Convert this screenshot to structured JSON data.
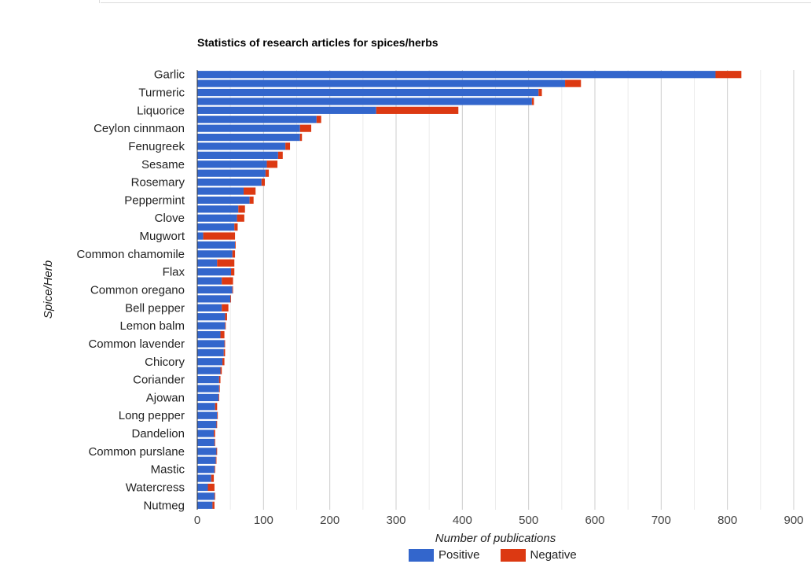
{
  "chart_data": {
    "type": "bar",
    "orientation": "horizontal",
    "stacked": true,
    "title": "Statistics of research articles for spices/herbs",
    "xlabel": "Number of publications",
    "ylabel": "Spice/Herb",
    "xlim": [
      0,
      900
    ],
    "xticks": [
      0,
      100,
      200,
      300,
      400,
      500,
      600,
      700,
      800,
      900
    ],
    "grid": true,
    "legend_position": "bottom",
    "categories": [
      "Garlic",
      "",
      "Turmeric",
      "",
      "Liquorice",
      "",
      "Ceylon cinnmaon",
      "",
      "Fenugreek",
      "",
      "Sesame",
      "",
      "Rosemary",
      "",
      "Peppermint",
      "",
      "Clove",
      "",
      "Mugwort",
      "",
      "Common chamomile",
      "",
      "Flax",
      "",
      "Common oregano",
      "",
      "Bell pepper",
      "",
      "Lemon balm",
      "",
      "Common lavender",
      "",
      "Chicory",
      "",
      "Coriander",
      "",
      "Ajowan",
      "",
      "Long pepper",
      "",
      "Dandelion",
      "",
      "Common purslane",
      "",
      "Mastic",
      "",
      "Watercress",
      "",
      "Nutmeg"
    ],
    "series": [
      {
        "name": "Positive",
        "color": "#3366cc",
        "values": [
          782,
          555,
          515,
          505,
          270,
          180,
          155,
          155,
          133,
          122,
          105,
          103,
          97,
          70,
          79,
          62,
          60,
          56,
          9,
          57,
          53,
          30,
          51,
          37,
          53,
          50,
          37,
          42,
          42,
          35,
          41,
          40,
          38,
          35,
          33,
          33,
          32,
          27,
          30,
          29,
          25,
          26,
          29,
          28,
          26,
          21,
          16,
          26,
          23
        ]
      },
      {
        "name": "Negative",
        "color": "#dc3912",
        "values": [
          39,
          24,
          5,
          3,
          124,
          7,
          17,
          3,
          7,
          7,
          16,
          5,
          5,
          18,
          6,
          10,
          11,
          5,
          48,
          1,
          4,
          26,
          5,
          17,
          1,
          1,
          10,
          3,
          1,
          6,
          1,
          2,
          3,
          2,
          2,
          1,
          1,
          3,
          1,
          1,
          2,
          1,
          1,
          1,
          1,
          4,
          10,
          1,
          3
        ]
      }
    ]
  },
  "legend": {
    "positive": "Positive",
    "negative": "Negative"
  }
}
